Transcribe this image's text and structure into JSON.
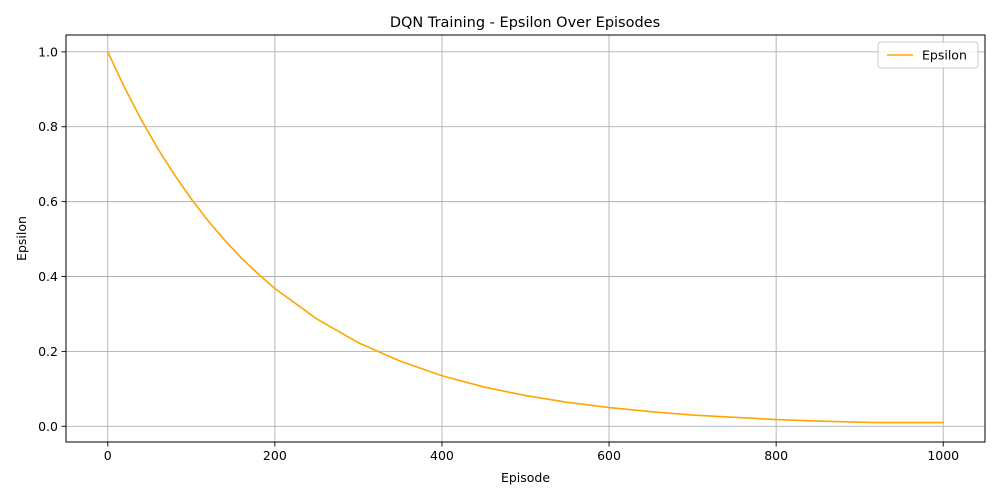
{
  "chart_data": {
    "type": "line",
    "title": "DQN Training - Epsilon Over Episodes",
    "xlabel": "Episode",
    "ylabel": "Epsilon",
    "xlim": [
      -50,
      1050
    ],
    "ylim": [
      -0.042,
      1.045
    ],
    "xticks": [
      0,
      200,
      400,
      600,
      800,
      1000
    ],
    "yticks": [
      0.0,
      0.2,
      0.4,
      0.6,
      0.8,
      1.0
    ],
    "xtick_labels": [
      "0",
      "200",
      "400",
      "600",
      "800",
      "1000"
    ],
    "ytick_labels": [
      "0.0",
      "0.2",
      "0.4",
      "0.6",
      "0.8",
      "1.0"
    ],
    "grid": true,
    "legend": {
      "position": "top-right"
    },
    "series": [
      {
        "name": "Epsilon",
        "color": "#ffa500",
        "x": [
          0,
          20,
          40,
          60,
          80,
          100,
          120,
          140,
          160,
          180,
          200,
          250,
          300,
          350,
          400,
          450,
          500,
          550,
          600,
          650,
          700,
          750,
          800,
          850,
          900,
          920,
          940,
          960,
          980,
          1000
        ],
        "y": [
          1.0,
          0.905,
          0.819,
          0.741,
          0.671,
          0.607,
          0.549,
          0.497,
          0.449,
          0.407,
          0.368,
          0.287,
          0.223,
          0.174,
          0.135,
          0.105,
          0.082,
          0.064,
          0.05,
          0.039,
          0.03,
          0.024,
          0.018,
          0.014,
          0.011,
          0.01,
          0.01,
          0.01,
          0.01,
          0.01
        ]
      }
    ]
  }
}
